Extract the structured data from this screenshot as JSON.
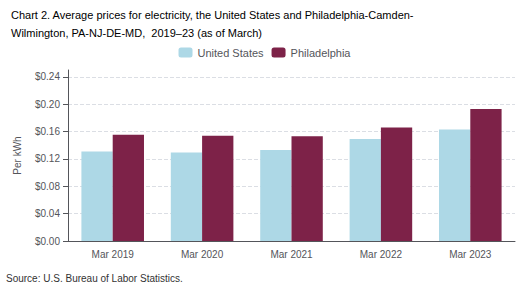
{
  "chart_data": {
    "type": "bar",
    "title": "Chart 2. Average prices for electricity, the United States and Philadelphia-Camden-",
    "subtitle": "Wilmington, PA-NJ-DE-MD,  2019–23 (as of March)",
    "ylabel": "Per kWh",
    "annotations": [
      "Source: U.S. Bureau of Labor Statistics."
    ],
    "categories": [
      "Mar 2019",
      "Mar 2020",
      "Mar 2021",
      "Mar 2022",
      "Mar 2023"
    ],
    "series": [
      {
        "name": "United States",
        "color": "#add8e6",
        "values": [
          0.131,
          0.1295,
          0.133,
          0.149,
          0.163
        ]
      },
      {
        "name": "Philadelphia",
        "color": "#7d2248",
        "values": [
          0.1555,
          0.154,
          0.153,
          0.166,
          0.193
        ]
      }
    ],
    "ylim": [
      0.0,
      0.25
    ],
    "yticks": [
      {
        "value": 0.0,
        "label": "$0.00"
      },
      {
        "value": 0.04,
        "label": "$0.04"
      },
      {
        "value": 0.08,
        "label": "$0.08"
      },
      {
        "value": 0.12,
        "label": "$0.12"
      },
      {
        "value": 0.16,
        "label": "$0.16"
      },
      {
        "value": 0.2,
        "label": "$0.20"
      },
      {
        "value": 0.24,
        "label": "$0.24"
      }
    ],
    "grid": true,
    "legend": "top"
  }
}
